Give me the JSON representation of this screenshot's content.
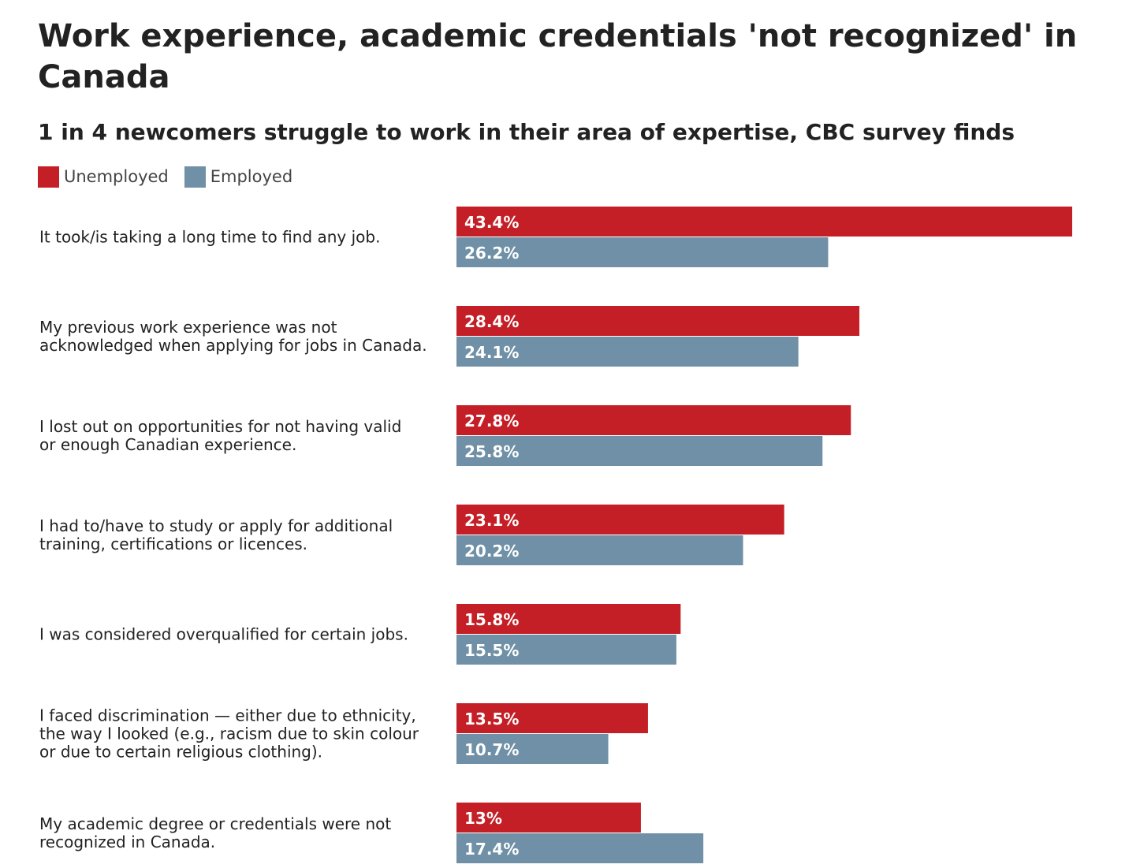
{
  "title": "Work experience, academic credentials 'not recognized' in Canada",
  "subtitle": "1 in 4 newcomers struggle to work in their area of expertise, CBC survey finds",
  "colors": {
    "unemployed": "#c41f26",
    "employed": "#6f90a6"
  },
  "chart_data": {
    "type": "bar",
    "orientation": "horizontal",
    "title": "Work experience, academic credentials 'not recognized' in Canada",
    "subtitle": "1 in 4 newcomers struggle to work in their area of expertise, CBC survey finds",
    "legend_position": "top-left",
    "grid": false,
    "xlim": [
      0,
      43.4
    ],
    "categories": [
      [
        "It took/is taking a long time to find any job."
      ],
      [
        "My previous work experience was not",
        "acknowledged when applying for jobs in Canada."
      ],
      [
        "I lost out on opportunities for not having valid",
        "or enough Canadian experience."
      ],
      [
        "I had to/have to study or apply for additional",
        "training, certifications or licences."
      ],
      [
        "I was considered overqualified for certain jobs."
      ],
      [
        "I faced discrimination — either due to ethnicity,",
        "the way I looked (e.g., racism due to skin colour",
        "or due to certain religious clothing)."
      ],
      [
        "My academic degree or credentials were not",
        "recognized in Canada."
      ]
    ],
    "series": [
      {
        "name": "Unemployed",
        "color": "#c41f26",
        "values": [
          43.4,
          28.4,
          27.8,
          23.1,
          15.8,
          13.5,
          13.0
        ],
        "labels": [
          "43.4%",
          "28.4%",
          "27.8%",
          "23.1%",
          "15.8%",
          "13.5%",
          "13%"
        ]
      },
      {
        "name": "Employed",
        "color": "#6f90a6",
        "values": [
          26.2,
          24.1,
          25.8,
          20.2,
          15.5,
          10.7,
          17.4
        ],
        "labels": [
          "26.2%",
          "24.1%",
          "25.8%",
          "20.2%",
          "15.5%",
          "10.7%",
          "17.4%"
        ]
      }
    ]
  }
}
